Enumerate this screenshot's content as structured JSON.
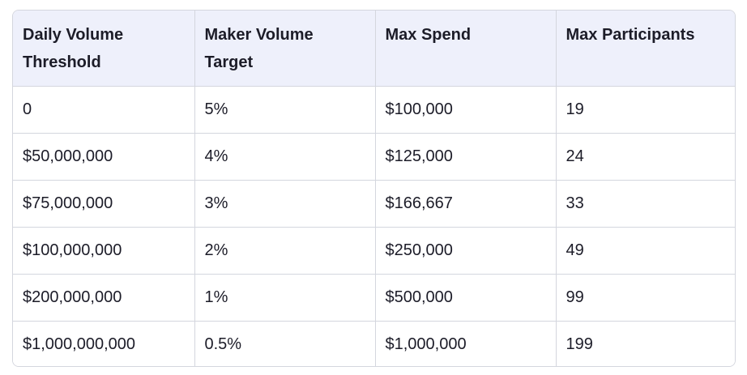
{
  "table": {
    "headers": [
      "Daily Volume Threshold",
      "Maker Volume Target",
      "Max Spend",
      "Max Participants"
    ],
    "rows": [
      [
        "0",
        "5%",
        "$100,000",
        "19"
      ],
      [
        "$50,000,000",
        "4%",
        "$125,000",
        "24"
      ],
      [
        "$75,000,000",
        "3%",
        "$166,667",
        "33"
      ],
      [
        "$100,000,000",
        "2%",
        "$250,000",
        "49"
      ],
      [
        "$200,000,000",
        "1%",
        "$500,000",
        "99"
      ],
      [
        "$1,000,000,000",
        "0.5%",
        "$1,000,000",
        "199"
      ]
    ]
  },
  "colors": {
    "header_bg": "#eef0fb",
    "border": "#d4d6de",
    "text": "#1c1c28"
  }
}
